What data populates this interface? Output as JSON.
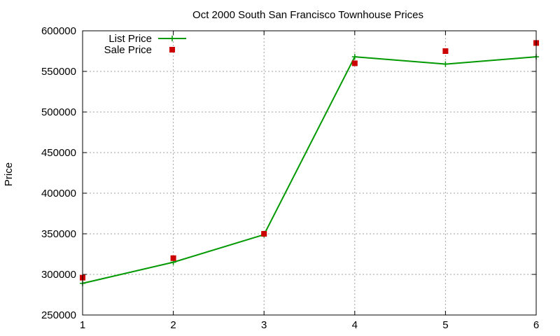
{
  "chart_data": {
    "type": "line",
    "title": "Oct 2000 South San Francisco Townhouse Prices",
    "xlabel": "",
    "ylabel": "Price",
    "x": [
      1,
      2,
      3,
      4,
      5,
      6
    ],
    "xlim": [
      1,
      6
    ],
    "ylim": [
      250000,
      600000
    ],
    "xticks": [
      1,
      2,
      3,
      4,
      5,
      6
    ],
    "yticks": [
      250000,
      300000,
      350000,
      400000,
      450000,
      500000,
      550000,
      600000
    ],
    "grid": true,
    "legend_position": "top-left",
    "series": [
      {
        "name": "List Price",
        "style": "lines+points",
        "marker": "plus",
        "color": "#009900",
        "values": [
          289000,
          315000,
          349000,
          568000,
          559000,
          568000
        ]
      },
      {
        "name": "Sale Price",
        "style": "points",
        "marker": "square",
        "color": "#cc0000",
        "values": [
          296000,
          320000,
          350000,
          560000,
          575000,
          585000
        ]
      }
    ]
  }
}
